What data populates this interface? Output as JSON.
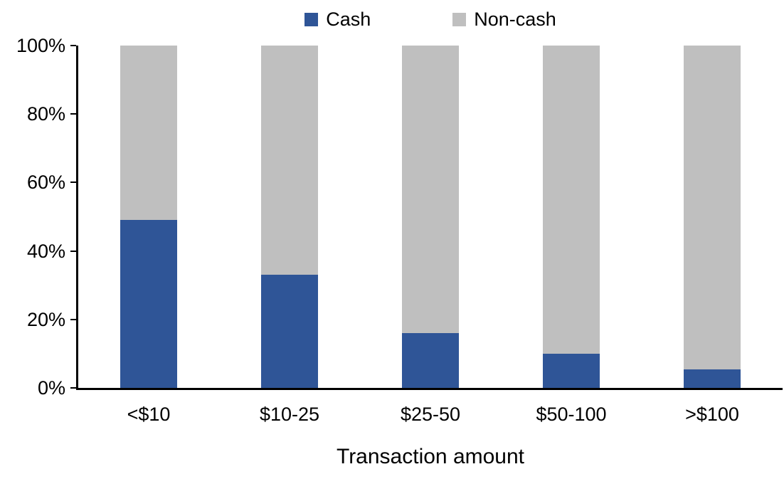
{
  "chart_data": {
    "type": "bar",
    "stacked": true,
    "title": "",
    "xlabel": "Transaction amount",
    "ylabel": "",
    "categories": [
      "<$10",
      "$10-25",
      "$25-50",
      "$50-100",
      ">$100"
    ],
    "series": [
      {
        "name": "Cash",
        "color": "#2F5597",
        "values": [
          49,
          33,
          16,
          10,
          5.5
        ]
      },
      {
        "name": "Non-cash",
        "color": "#BFBFBF",
        "values": [
          51,
          67,
          84,
          90,
          94.5
        ]
      }
    ],
    "ylim": [
      0,
      100
    ],
    "ytick_labels": [
      "0%",
      "20%",
      "40%",
      "60%",
      "80%",
      "100%"
    ],
    "xtick_labels": [
      "<$10",
      "$10-25",
      "$25-50",
      "$50-100",
      ">$100"
    ],
    "legend_position": "top",
    "grid": false,
    "axis_color": "#000000",
    "background_color": "#FFFFFF"
  }
}
